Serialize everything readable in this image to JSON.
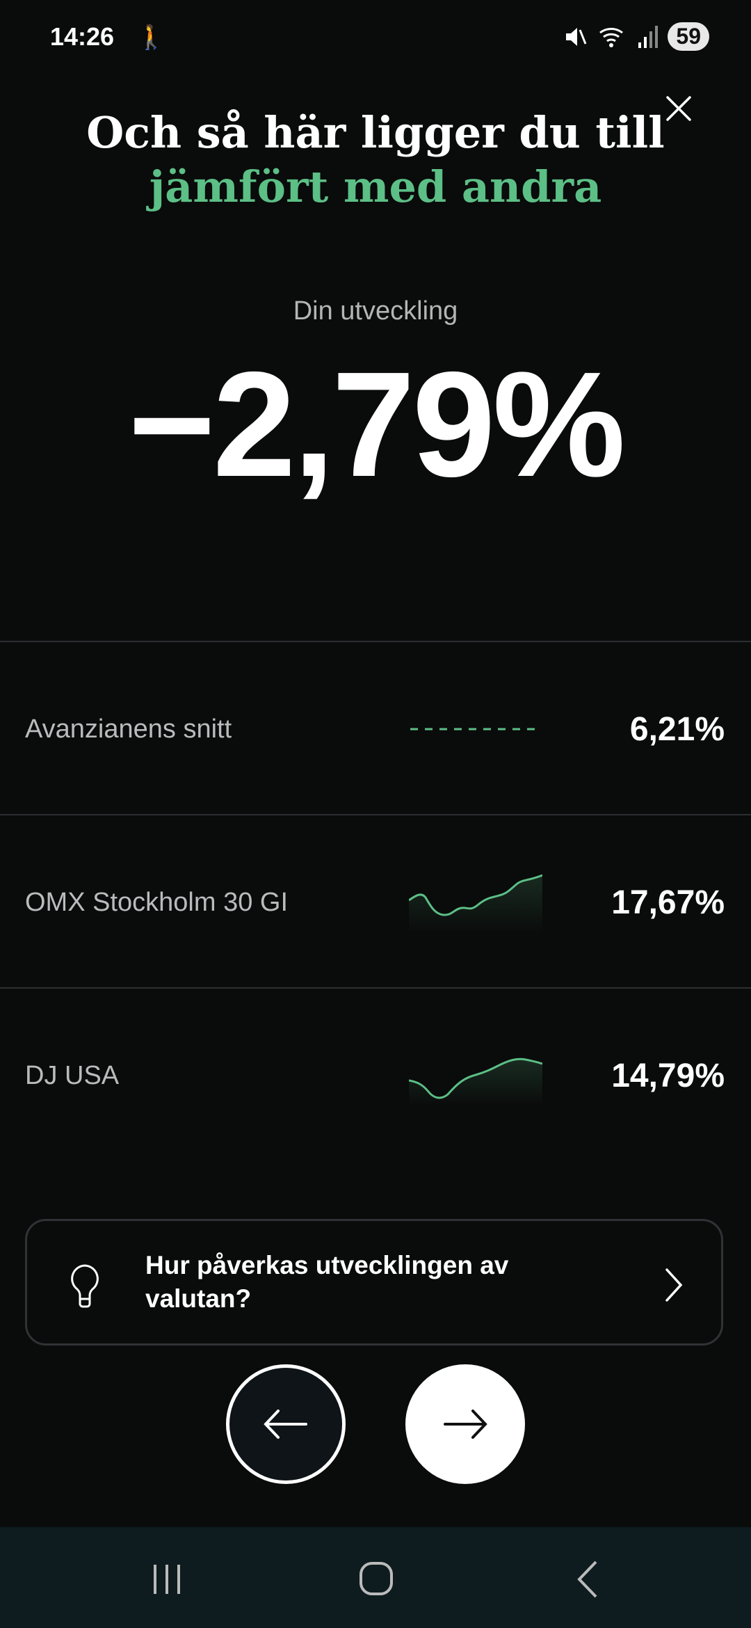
{
  "status_bar": {
    "time": "14:26",
    "battery": "59",
    "icons": [
      "hiker-icon",
      "mute-icon",
      "wifi-icon",
      "signal-icon"
    ]
  },
  "header": {
    "title_line1": "Och så här ligger du till",
    "title_line2": "jämfört med andra",
    "close_icon": "close-icon"
  },
  "performance": {
    "label": "Din utveckling",
    "value": "−2,79%"
  },
  "comparisons": [
    {
      "label": "Avanzianens snitt",
      "value": "6,21%",
      "graph": "dashed"
    },
    {
      "label": "OMX Stockholm 30 GI",
      "value": "17,67%",
      "graph": "sparkline"
    },
    {
      "label": "DJ USA",
      "value": "14,79%",
      "graph": "sparkline"
    }
  ],
  "info_card": {
    "text": "Hur påverkas utvecklingen av valutan?",
    "icon": "lightbulb-icon"
  },
  "navigation": {
    "back_icon": "arrow-left-icon",
    "forward_icon": "arrow-right-icon"
  },
  "colors": {
    "accent": "#5cbf86",
    "background": "#0a0b0b",
    "navbar": "#0e1c1f"
  }
}
